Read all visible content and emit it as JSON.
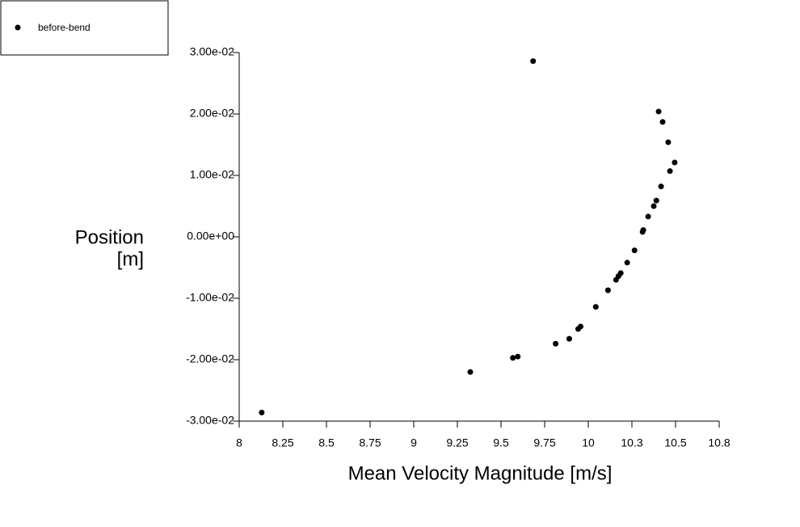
{
  "chart_data": {
    "type": "scatter",
    "xlabel": "Mean Velocity Magnitude [m/s]",
    "ylabel": [
      "Position",
      "[m]"
    ],
    "xlim": [
      8,
      10.75
    ],
    "ylim": [
      -0.03,
      0.03
    ],
    "xticks": [
      8,
      8.25,
      8.5,
      8.75,
      9,
      9.25,
      9.5,
      9.75,
      10,
      {
        "value": 10.25,
        "label": "10.3"
      },
      10.5,
      {
        "value": 10.75,
        "label": "10.8"
      }
    ],
    "yticks": [
      {
        "value": -0.03,
        "label": "-3.00e-02"
      },
      {
        "value": -0.02,
        "label": "-2.00e-02"
      },
      {
        "value": -0.01,
        "label": "-1.00e-02"
      },
      {
        "value": 0,
        "label": "0.00e+00"
      },
      {
        "value": 0.01,
        "label": "1.00e-02"
      },
      {
        "value": 0.02,
        "label": "2.00e-02"
      },
      {
        "value": 0.03,
        "label": "3.00e-02"
      }
    ],
    "series": [
      {
        "name": "before-bend",
        "color": "#000000",
        "x": [
          9.684,
          10.403,
          10.426,
          10.458,
          10.495,
          10.468,
          10.417,
          10.39,
          10.375,
          10.343,
          10.315,
          10.311,
          10.265,
          10.223,
          10.186,
          10.173,
          10.159,
          10.113,
          10.043,
          9.956,
          9.942,
          9.891,
          9.813,
          9.596,
          9.568,
          9.324,
          8.129
        ],
        "values": [
          0.0286,
          0.0204,
          0.0187,
          0.0154,
          0.0121,
          0.0107,
          0.0082,
          0.0059,
          0.005,
          0.0033,
          0.0011,
          0.0008,
          -0.0022,
          -0.0042,
          -0.0059,
          -0.0064,
          -0.007,
          -0.0087,
          -0.0114,
          -0.0146,
          -0.015,
          -0.0166,
          -0.0174,
          -0.0195,
          -0.0197,
          -0.022,
          -0.0286
        ]
      }
    ]
  }
}
